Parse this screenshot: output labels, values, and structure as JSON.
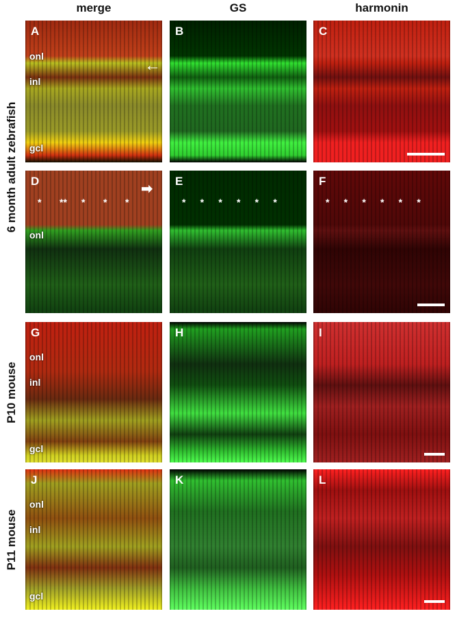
{
  "columns": [
    "merge",
    "GS",
    "harmonin"
  ],
  "rows": [
    {
      "label": "6 month adult zebrafish",
      "span": 2
    },
    {
      "label": "P10 mouse",
      "span": 1
    },
    {
      "label": "P11 mouse",
      "span": 1
    }
  ],
  "panels": [
    {
      "id": "A",
      "layers": [
        "onl",
        "inl",
        "gcl"
      ]
    },
    {
      "id": "B",
      "layers": []
    },
    {
      "id": "C",
      "layers": [],
      "scalebar": true
    },
    {
      "id": "D",
      "layers": [
        "onl"
      ],
      "stars": [
        "*",
        "**",
        "*",
        "*",
        "*"
      ]
    },
    {
      "id": "E",
      "layers": [],
      "stars": [
        "*",
        "*",
        "*",
        "*",
        "*",
        "*"
      ]
    },
    {
      "id": "F",
      "layers": [],
      "stars": [
        "*",
        "*",
        "*",
        "*",
        "*",
        "*"
      ],
      "scalebar": true
    },
    {
      "id": "G",
      "layers": [
        "onl",
        "inl",
        "gcl"
      ]
    },
    {
      "id": "H",
      "layers": []
    },
    {
      "id": "I",
      "layers": [],
      "scalebar": true
    },
    {
      "id": "J",
      "layers": [
        "onl",
        "inl",
        "gcl"
      ]
    },
    {
      "id": "K",
      "layers": []
    },
    {
      "id": "L",
      "layers": [],
      "scalebar": true
    }
  ],
  "colors": {
    "merge": "#b8b020",
    "gs": "#22d022",
    "harmonin": "#e01010"
  }
}
